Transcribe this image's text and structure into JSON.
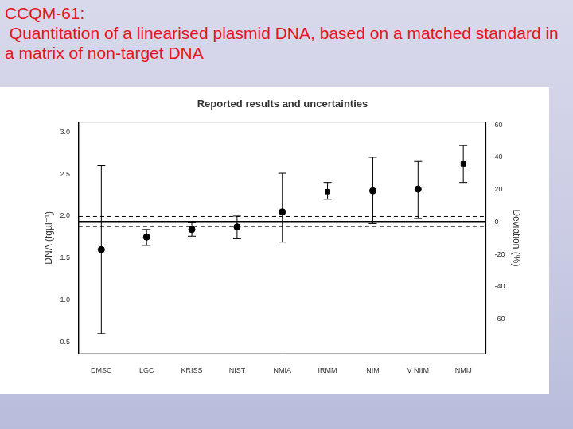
{
  "heading": [
    "CCQM-61:",
    " Quantitation of a linearised plasmid DNA, based on a matched standard in a matrix of non-target DNA"
  ],
  "chart_data": {
    "type": "scatter",
    "title": "Reported results and uncertainties",
    "y_label": "DNA (fgµl⁻¹)",
    "y2_label": "Deviation (%)",
    "categories": [
      "DMSC",
      "LGC",
      "KRISS",
      "NIST",
      "NMIA",
      "IRMM",
      "NIM",
      "V NIIM",
      "NMIJ"
    ],
    "series": [
      {
        "marker": "circle",
        "color": "#000000",
        "values": [
          1.6,
          1.75,
          1.84,
          1.87,
          2.05,
          null,
          2.3,
          2.32,
          null
        ],
        "error_low": [
          0.6,
          1.65,
          1.76,
          1.73,
          1.69,
          null,
          1.91,
          1.97,
          null
        ],
        "error_high": [
          2.6,
          1.84,
          1.92,
          2.0,
          2.51,
          null,
          2.7,
          2.65,
          null
        ]
      },
      {
        "marker": "square",
        "color": "#000000",
        "values": [
          null,
          null,
          null,
          null,
          null,
          2.29,
          null,
          null,
          2.62
        ],
        "error_low": [
          null,
          null,
          null,
          null,
          null,
          2.2,
          null,
          null,
          2.4
        ],
        "error_high": [
          null,
          null,
          null,
          null,
          null,
          2.4,
          null,
          null,
          2.84
        ]
      }
    ],
    "reference_value": 1.93,
    "reference_band": [
      1.875,
      1.995
    ],
    "ylim": [
      0.36,
      3.12
    ],
    "yticks": [
      0.5,
      {
        "value": 1,
        "label": "1.0"
      },
      1.5,
      {
        "value": 2,
        "label": "2.0"
      },
      2.5,
      {
        "value": 3,
        "label": "3.0"
      }
    ],
    "y2lim": [
      -81.3,
      61.7
    ],
    "y2ticks": [
      -60,
      -40,
      -20,
      0,
      20,
      40,
      60
    ],
    "grid": false
  }
}
